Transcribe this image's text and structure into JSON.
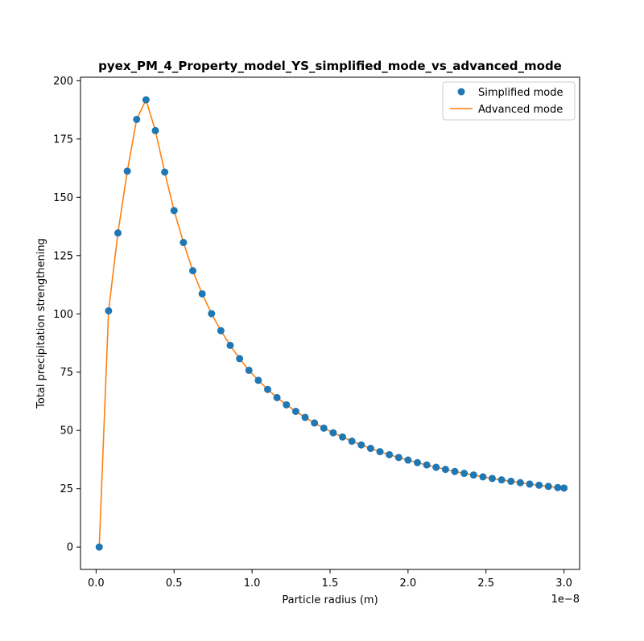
{
  "chart_data": {
    "type": "scatter",
    "title": "pyex_PM_4_Property_model_YS_simplified_mode_vs_advanced_mode",
    "xlabel": "Particle radius (m)",
    "ylabel": "Total precipitation strengthening",
    "x_offset_text": "1e−8",
    "xlim": [
      -0.1,
      3.1
    ],
    "ylim": [
      -9.6,
      201.5
    ],
    "x_ticks": [
      0.0,
      0.5,
      1.0,
      1.5,
      2.0,
      2.5,
      3.0
    ],
    "x_tick_labels": [
      "0.0",
      "0.5",
      "1.0",
      "1.5",
      "2.0",
      "2.5",
      "3.0"
    ],
    "y_ticks": [
      0,
      25,
      50,
      75,
      100,
      125,
      150,
      175,
      200
    ],
    "y_tick_labels": [
      "0",
      "25",
      "50",
      "75",
      "100",
      "125",
      "150",
      "175",
      "200"
    ],
    "grid": false,
    "legend_position": "top-right",
    "x": [
      0.02,
      0.08,
      0.14,
      0.2,
      0.26,
      0.32,
      0.38,
      0.44,
      0.5,
      0.56,
      0.62,
      0.68,
      0.74,
      0.8,
      0.86,
      0.92,
      0.98,
      1.04,
      1.1,
      1.16,
      1.22,
      1.28,
      1.34,
      1.4,
      1.46,
      1.52,
      1.58,
      1.64,
      1.7,
      1.76,
      1.82,
      1.88,
      1.94,
      2.0,
      2.06,
      2.12,
      2.18,
      2.24,
      2.3,
      2.36,
      2.42,
      2.48,
      2.54,
      2.6,
      2.66,
      2.72,
      2.78,
      2.84,
      2.9,
      2.96,
      3.0
    ],
    "series": [
      {
        "name": "Simplified mode",
        "style": "markers",
        "color": "#1f77b4",
        "values": [
          0.0,
          101.3,
          134.7,
          161.2,
          183.4,
          191.8,
          178.6,
          160.8,
          144.3,
          130.6,
          118.5,
          108.6,
          100.1,
          92.8,
          86.5,
          80.8,
          75.8,
          71.5,
          67.6,
          64.1,
          61.0,
          58.2,
          55.6,
          53.2,
          51.0,
          49.0,
          47.2,
          45.4,
          43.8,
          42.3,
          40.9,
          39.6,
          38.4,
          37.3,
          36.2,
          35.2,
          34.2,
          33.3,
          32.4,
          31.6,
          30.9,
          30.1,
          29.4,
          28.8,
          28.2,
          27.6,
          27.0,
          26.5,
          26.0,
          25.5,
          25.3
        ]
      },
      {
        "name": "Advanced mode",
        "style": "line",
        "color": "#ff7f0e",
        "values": [
          0.0,
          101.3,
          134.7,
          161.2,
          183.4,
          191.8,
          178.6,
          160.8,
          144.3,
          130.6,
          118.5,
          108.6,
          100.1,
          92.8,
          86.5,
          80.8,
          75.8,
          71.5,
          67.6,
          64.1,
          61.0,
          58.2,
          55.6,
          53.2,
          51.0,
          49.0,
          47.2,
          45.4,
          43.8,
          42.3,
          40.9,
          39.6,
          38.4,
          37.3,
          36.2,
          35.2,
          34.2,
          33.3,
          32.4,
          31.6,
          30.9,
          30.1,
          29.4,
          28.8,
          28.2,
          27.6,
          27.0,
          26.5,
          26.0,
          25.5,
          25.3
        ]
      }
    ]
  }
}
